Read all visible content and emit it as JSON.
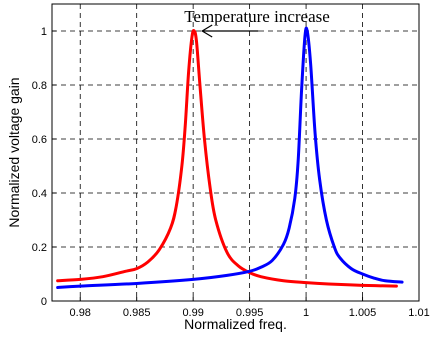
{
  "chart_data": {
    "type": "line",
    "xlabel": "Normalized freq.",
    "ylabel": "Normalized voltage gain",
    "xlim": [
      0.9775,
      1.01
    ],
    "ylim": [
      0,
      1.1
    ],
    "x_ticks": [
      "0.98",
      "0.985",
      "0.99",
      "0.995",
      "1",
      "1.005",
      "1.01"
    ],
    "x_tick_values": [
      0.98,
      0.985,
      0.99,
      0.995,
      1.0,
      1.005,
      1.01
    ],
    "y_ticks": [
      "0",
      "0.2",
      "0.4",
      "0.6",
      "0.8",
      "1"
    ],
    "y_tick_values": [
      0,
      0.2,
      0.4,
      0.6,
      0.8,
      1.0
    ],
    "grid": true,
    "annotation": {
      "text": "Temperature increase",
      "arrow_from": [
        0.9958,
        1.0
      ],
      "arrow_to": [
        0.9908,
        1.0
      ]
    },
    "series": [
      {
        "color": "#ff0000",
        "x": [
          0.978,
          0.98,
          0.982,
          0.984,
          0.985,
          0.986,
          0.987,
          0.988,
          0.9885,
          0.989,
          0.9893,
          0.9896,
          0.9899,
          0.9901,
          0.9903,
          0.9906,
          0.991,
          0.9915,
          0.992,
          0.993,
          0.994,
          0.995,
          0.996,
          0.998,
          1.0,
          1.002,
          1.005,
          1.008
        ],
        "y": [
          0.075,
          0.08,
          0.09,
          0.11,
          0.12,
          0.145,
          0.19,
          0.27,
          0.35,
          0.5,
          0.65,
          0.85,
          0.98,
          1.0,
          0.96,
          0.8,
          0.6,
          0.42,
          0.3,
          0.18,
          0.13,
          0.105,
          0.09,
          0.075,
          0.068,
          0.063,
          0.058,
          0.055
        ]
      },
      {
        "color": "#0000ff",
        "x": [
          0.978,
          0.98,
          0.985,
          0.99,
          0.993,
          0.995,
          0.996,
          0.997,
          0.998,
          0.9985,
          0.999,
          0.9993,
          0.9996,
          0.9999,
          1.0001,
          1.0004,
          1.0008,
          1.0012,
          1.0018,
          1.0025,
          1.003,
          1.004,
          1.005,
          1.006,
          1.007,
          1.0085
        ],
        "y": [
          0.05,
          0.055,
          0.065,
          0.08,
          0.095,
          0.11,
          0.125,
          0.15,
          0.21,
          0.27,
          0.38,
          0.52,
          0.78,
          0.98,
          1.0,
          0.88,
          0.62,
          0.45,
          0.3,
          0.2,
          0.16,
          0.12,
          0.1,
          0.085,
          0.075,
          0.07
        ]
      }
    ]
  }
}
